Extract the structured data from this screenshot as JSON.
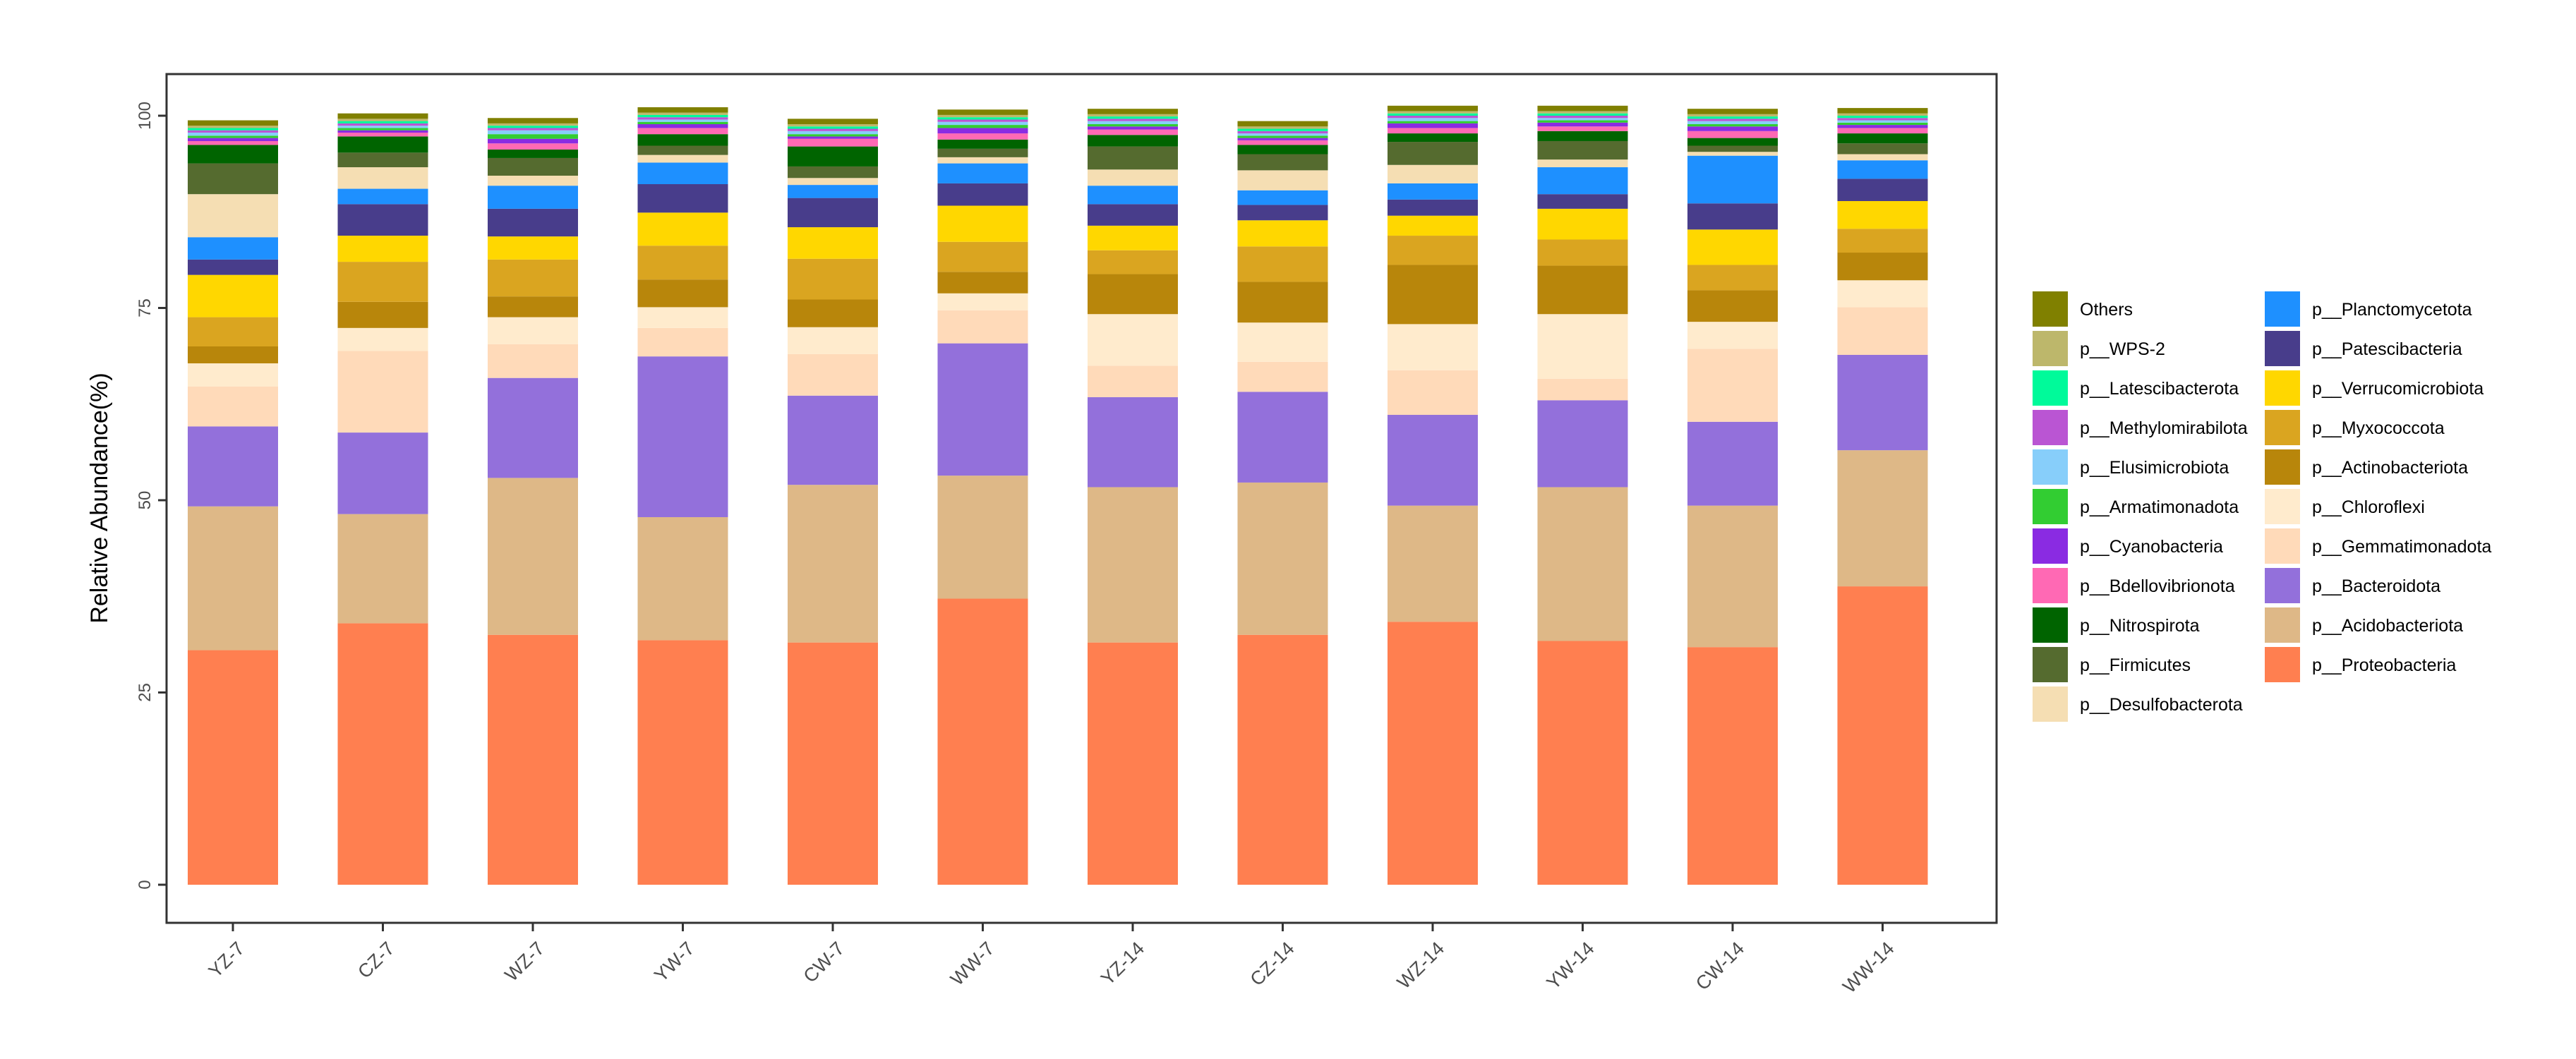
{
  "chart_data": {
    "type": "bar",
    "stacked": true,
    "ylabel": "Relative Abundance(%)",
    "xlabel": "",
    "ylim": [
      0,
      100
    ],
    "yticks": [
      "0",
      "25",
      "50",
      "75",
      "100"
    ],
    "grid": false,
    "legend_position": "right",
    "categories": [
      "YZ-7",
      "CZ-7",
      "WZ-7",
      "YW-7",
      "CW-7",
      "WW-7",
      "YZ-14",
      "CZ-14",
      "WZ-14",
      "YW-14",
      "CW-14",
      "WW-14"
    ],
    "series": [
      {
        "name": "p__Proteobacteria",
        "color": "#FF7F50",
        "values": [
          30.5,
          34.0,
          32.5,
          31.8,
          31.5,
          37.2,
          31.5,
          32.5,
          34.2,
          31.7,
          30.9,
          38.8
        ]
      },
      {
        "name": "p__Acidobacteriota",
        "color": "#DEB887",
        "values": [
          18.7,
          14.2,
          20.4,
          16.0,
          20.5,
          16.0,
          20.2,
          19.8,
          15.1,
          20.0,
          18.4,
          17.7
        ]
      },
      {
        "name": "p__Bacteroidota",
        "color": "#9370DB",
        "values": [
          10.4,
          10.6,
          13.0,
          20.9,
          11.6,
          17.2,
          11.7,
          11.8,
          11.8,
          11.3,
          10.9,
          12.4
        ]
      },
      {
        "name": "p__Gemmatimonadota",
        "color": "#FFDAB9",
        "values": [
          5.2,
          10.6,
          4.4,
          3.7,
          5.4,
          4.3,
          4.1,
          3.9,
          5.8,
          2.8,
          9.5,
          6.2
        ]
      },
      {
        "name": "p__Chloroflexi",
        "color": "#FFEBCD",
        "values": [
          3.0,
          3.0,
          3.5,
          2.7,
          3.5,
          2.2,
          6.7,
          5.1,
          6.0,
          8.4,
          3.5,
          3.5
        ]
      },
      {
        "name": "p__Actinobacteriota",
        "color": "#B8860B",
        "values": [
          2.2,
          3.4,
          2.7,
          3.6,
          3.6,
          2.8,
          5.2,
          5.3,
          7.7,
          6.3,
          4.1,
          3.6
        ]
      },
      {
        "name": "p__Myxococcota",
        "color": "#DAA520",
        "values": [
          3.8,
          5.2,
          4.8,
          4.4,
          5.3,
          3.9,
          3.1,
          4.6,
          3.8,
          3.4,
          3.3,
          3.1
        ]
      },
      {
        "name": "p__Verrucomicrobiota",
        "color": "#FFD700",
        "values": [
          5.5,
          3.4,
          3.0,
          4.3,
          4.1,
          4.7,
          3.2,
          3.4,
          2.6,
          4.0,
          4.6,
          3.6
        ]
      },
      {
        "name": "p__Patescibacteria",
        "color": "#483D8B",
        "values": [
          2.0,
          4.1,
          3.6,
          3.7,
          3.8,
          2.9,
          2.8,
          2.0,
          2.1,
          1.9,
          3.4,
          2.9
        ]
      },
      {
        "name": "p__Planctomycetota",
        "color": "#1E90FF",
        "values": [
          2.9,
          2.0,
          3.0,
          2.8,
          1.7,
          2.6,
          2.4,
          1.9,
          2.1,
          3.5,
          6.2,
          2.4
        ]
      },
      {
        "name": "p__Desulfobacterota",
        "color": "#F5DEB3",
        "values": [
          5.6,
          2.8,
          1.3,
          1.0,
          0.9,
          0.8,
          2.1,
          2.6,
          2.4,
          1.0,
          0.5,
          0.8
        ]
      },
      {
        "name": "p__Firmicutes",
        "color": "#556B2F",
        "values": [
          4.0,
          1.9,
          2.3,
          1.2,
          1.5,
          1.1,
          3.0,
          2.1,
          3.0,
          2.4,
          0.8,
          1.4
        ]
      },
      {
        "name": "p__Nitrospirota",
        "color": "#006400",
        "values": [
          2.4,
          2.1,
          1.1,
          1.5,
          2.6,
          1.2,
          1.5,
          1.2,
          1.1,
          1.3,
          1.0,
          1.3
        ]
      },
      {
        "name": "p__Bdellovibrionota",
        "color": "#FF69B4",
        "values": [
          0.5,
          0.5,
          0.8,
          0.8,
          1.0,
          0.8,
          0.7,
          0.6,
          0.7,
          0.6,
          0.9,
          0.7
        ]
      },
      {
        "name": "p__Cyanobacteria",
        "color": "#8A2BE2",
        "values": [
          0.4,
          0.3,
          0.6,
          0.5,
          0.3,
          0.7,
          0.4,
          0.3,
          0.6,
          0.5,
          0.6,
          0.4
        ]
      },
      {
        "name": "p__Armatimonadota",
        "color": "#32CD32",
        "values": [
          0.3,
          0.3,
          0.6,
          0.3,
          0.3,
          0.4,
          0.3,
          0.3,
          0.3,
          0.3,
          0.3,
          0.3
        ]
      },
      {
        "name": "p__Elusimicrobiota",
        "color": "#87CEFA",
        "values": [
          0.4,
          0.3,
          0.5,
          0.3,
          0.4,
          0.4,
          0.4,
          0.3,
          0.4,
          0.3,
          0.4,
          0.3
        ]
      },
      {
        "name": "p__Methylomirabilota",
        "color": "#BA55D3",
        "values": [
          0.3,
          0.3,
          0.3,
          0.3,
          0.3,
          0.3,
          0.3,
          0.3,
          0.3,
          0.3,
          0.3,
          0.3
        ]
      },
      {
        "name": "p__Latescibacterota",
        "color": "#00FA9A",
        "values": [
          0.3,
          0.3,
          0.3,
          0.3,
          0.3,
          0.3,
          0.3,
          0.3,
          0.3,
          0.3,
          0.3,
          0.3
        ]
      },
      {
        "name": "p__WPS-2",
        "color": "#BDB76B",
        "values": [
          0.3,
          0.3,
          0.3,
          0.3,
          0.3,
          0.3,
          0.3,
          0.3,
          0.3,
          0.3,
          0.3,
          0.3
        ]
      },
      {
        "name": "Others",
        "color": "#808000",
        "values": [
          0.7,
          0.7,
          0.7,
          0.7,
          0.7,
          0.7,
          0.7,
          0.7,
          0.7,
          0.7,
          0.7,
          0.7
        ]
      }
    ],
    "legend_columns": [
      [
        "Others",
        "p__WPS-2",
        "p__Latescibacterota",
        "p__Methylomirabilota",
        "p__Elusimicrobiota",
        "p__Armatimonadota",
        "p__Cyanobacteria",
        "p__Bdellovibrionota",
        "p__Nitrospirota",
        "p__Firmicutes",
        "p__Desulfobacterota"
      ],
      [
        "p__Planctomycetota",
        "p__Patescibacteria",
        "p__Verrucomicrobiota",
        "p__Myxococcota",
        "p__Actinobacteriota",
        "p__Chloroflexi",
        "p__Gemmatimonadota",
        "p__Bacteroidota",
        "p__Acidobacteriota",
        "p__Proteobacteria"
      ]
    ]
  }
}
